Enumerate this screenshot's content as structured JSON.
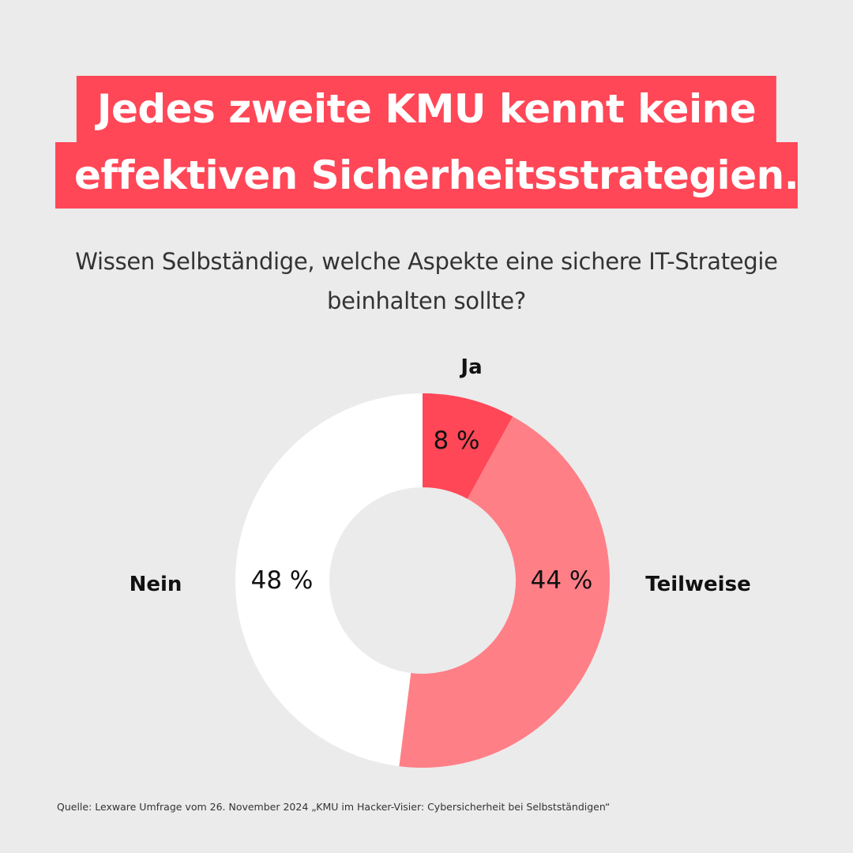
{
  "title": {
    "line1": "Jedes zweite KMU kennt keine",
    "line2": "effektiven Sicherheitsstrategien."
  },
  "subtitle": {
    "line1": "Wissen Selbständige, welche Aspekte eine sichere IT-Strategie",
    "line2": "beinhalten sollte?"
  },
  "colors": {
    "background": "#ebebeb",
    "accent": "#ff4757",
    "ja": "#ff4757",
    "teilweise": "#ff7f87",
    "nein": "#ffffff"
  },
  "chart_data": {
    "type": "pie",
    "variant": "donut",
    "title": "",
    "slices": [
      {
        "name": "Ja",
        "value": 8,
        "value_label": "8 %",
        "color": "#ff4757"
      },
      {
        "name": "Teilweise",
        "value": 44,
        "value_label": "44 %",
        "color": "#ff7f87"
      },
      {
        "name": "Nein",
        "value": 48,
        "value_label": "48 %",
        "color": "#ffffff"
      }
    ]
  },
  "source": "Quelle: Lexware Umfrage vom 26. November 2024 „KMU im Hacker-Visier: Cybersicherheit bei Selbstständigen“"
}
